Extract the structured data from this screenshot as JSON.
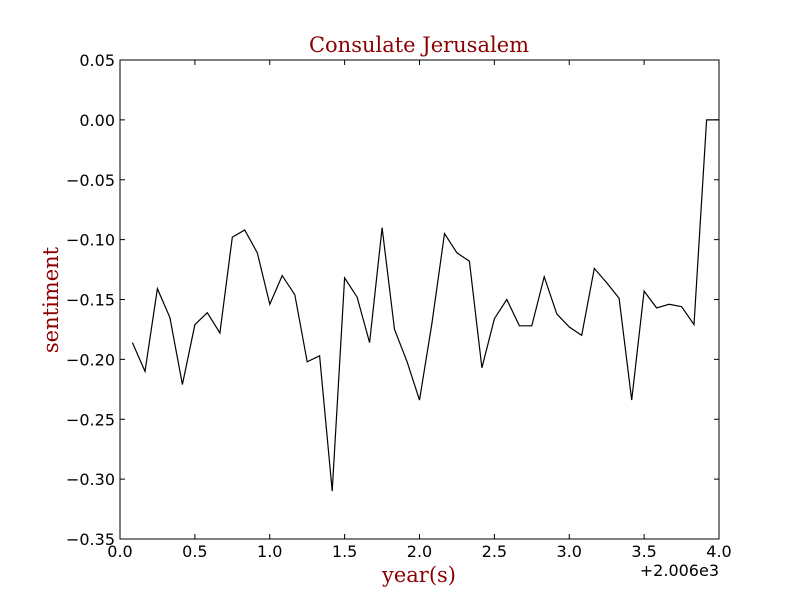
{
  "chart_data": {
    "type": "line",
    "title": "Consulate Jerusalem",
    "xlabel": "year(s)",
    "ylabel": "sentiment",
    "x_offset_label": "+2.006e3",
    "xlim": [
      0.0,
      4.0
    ],
    "ylim": [
      -0.35,
      0.05
    ],
    "x_ticks": [
      0.0,
      0.5,
      1.0,
      1.5,
      2.0,
      2.5,
      3.0,
      3.5,
      4.0
    ],
    "x_tick_labels": [
      "0.0",
      "0.5",
      "1.0",
      "1.5",
      "2.0",
      "2.5",
      "3.0",
      "3.5",
      "4.0"
    ],
    "y_ticks": [
      0.05,
      0.0,
      -0.05,
      -0.1,
      -0.15,
      -0.2,
      -0.25,
      -0.3,
      -0.35
    ],
    "y_tick_labels": [
      "0.05",
      "0.00",
      "−0.05",
      "−0.10",
      "−0.15",
      "−0.20",
      "−0.25",
      "−0.30",
      "−0.35"
    ],
    "grid": false,
    "colors": {
      "line": "#000000",
      "title": "#8b0000",
      "axis_label": "#8b0000"
    },
    "series": [
      {
        "x": [
          0.083,
          0.167,
          0.25,
          0.333,
          0.417,
          0.5,
          0.583,
          0.667,
          0.75,
          0.833,
          0.917,
          1.0,
          1.083,
          1.167,
          1.25,
          1.333,
          1.417,
          1.5,
          1.583,
          1.667,
          1.75,
          1.833,
          1.917,
          2.0,
          2.083,
          2.167,
          2.25,
          2.333,
          2.417,
          2.5,
          2.583,
          2.667,
          2.75,
          2.833,
          2.917,
          3.0,
          3.083,
          3.167,
          3.25,
          3.333,
          3.417,
          3.5,
          3.583,
          3.667,
          3.75,
          3.833,
          3.917,
          4.0
        ],
        "values": [
          -0.186,
          -0.21,
          -0.141,
          -0.165,
          -0.221,
          -0.171,
          -0.161,
          -0.178,
          -0.098,
          -0.092,
          -0.111,
          -0.154,
          -0.13,
          -0.146,
          -0.202,
          -0.197,
          -0.31,
          -0.132,
          -0.148,
          -0.186,
          -0.09,
          -0.175,
          -0.202,
          -0.234,
          -0.17,
          -0.095,
          -0.111,
          -0.118,
          -0.207,
          -0.166,
          -0.15,
          -0.172,
          -0.172,
          -0.131,
          -0.162,
          -0.173,
          -0.18,
          -0.124,
          -0.136,
          -0.149,
          -0.234,
          -0.143,
          -0.157,
          -0.154,
          -0.156,
          -0.171,
          0.0,
          0.0
        ]
      }
    ]
  }
}
